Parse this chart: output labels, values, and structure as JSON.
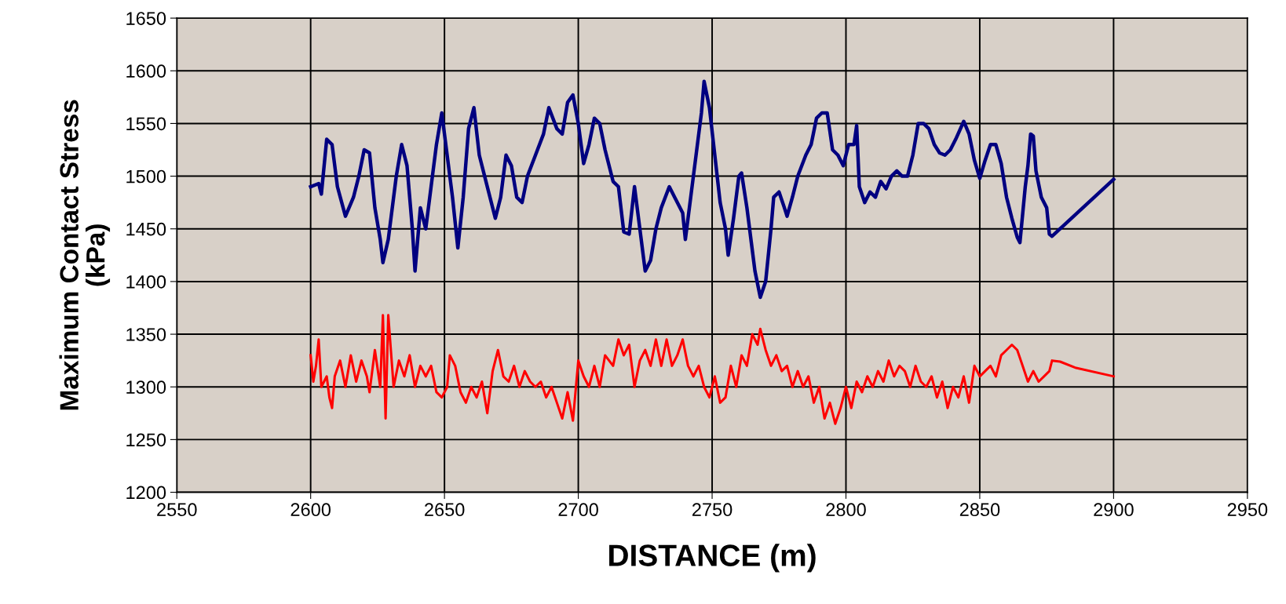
{
  "chart_data": {
    "type": "line",
    "xlabel": "DISTANCE (m)",
    "ylabel": "Maximum Contact Stress\n(kPa)",
    "xlim": [
      2550,
      2950
    ],
    "xticks": [
      2550,
      2600,
      2650,
      2700,
      2750,
      2800,
      2850,
      2900,
      2950
    ],
    "ylim": [
      1200,
      1650
    ],
    "yticks": [
      1200,
      1250,
      1300,
      1350,
      1400,
      1450,
      1500,
      1550,
      1600,
      1650
    ],
    "grid": true,
    "legend": false,
    "marker": "none",
    "line_style": "solid",
    "series": [
      {
        "color": "#000080",
        "x": [
          2600,
          2603,
          2604,
          2606,
          2608,
          2610,
          2613,
          2616,
          2618,
          2620,
          2622,
          2624,
          2626,
          2627,
          2629,
          2632,
          2634,
          2636,
          2638,
          2639,
          2641,
          2643,
          2645,
          2647,
          2649,
          2651,
          2653,
          2655,
          2657,
          2659,
          2661,
          2663,
          2665,
          2667,
          2669,
          2671,
          2673,
          2675,
          2677,
          2679,
          2681,
          2684,
          2687,
          2689,
          2692,
          2694,
          2696,
          2698,
          2700,
          2702,
          2704,
          2706,
          2708,
          2710,
          2713,
          2715,
          2717,
          2719,
          2721,
          2723,
          2725,
          2727,
          2729,
          2731,
          2734,
          2736,
          2739,
          2740,
          2742,
          2744,
          2746,
          2747,
          2749,
          2751,
          2753,
          2755,
          2756,
          2758,
          2760,
          2761,
          2763,
          2765,
          2766,
          2768,
          2770,
          2772,
          2773,
          2775,
          2777,
          2778,
          2780,
          2782,
          2785,
          2787,
          2789,
          2791,
          2793,
          2795,
          2797,
          2799,
          2801,
          2803,
          2804,
          2805,
          2807,
          2809,
          2811,
          2813,
          2815,
          2817,
          2819,
          2821,
          2823,
          2825,
          2827,
          2829,
          2831,
          2833,
          2835,
          2837,
          2839,
          2841,
          2844,
          2846,
          2848,
          2850,
          2852,
          2854,
          2856,
          2858,
          2860,
          2862,
          2864,
          2865,
          2867,
          2868,
          2869,
          2870,
          2871,
          2873,
          2875,
          2876,
          2877,
          2900
        ],
        "values": [
          1490,
          1493,
          1483,
          1535,
          1530,
          1490,
          1462,
          1480,
          1500,
          1525,
          1522,
          1470,
          1440,
          1418,
          1440,
          1500,
          1530,
          1510,
          1450,
          1410,
          1470,
          1450,
          1490,
          1530,
          1560,
          1520,
          1480,
          1432,
          1480,
          1545,
          1565,
          1520,
          1500,
          1480,
          1460,
          1480,
          1520,
          1510,
          1480,
          1475,
          1500,
          1520,
          1540,
          1565,
          1545,
          1540,
          1570,
          1577,
          1550,
          1512,
          1530,
          1555,
          1550,
          1525,
          1495,
          1490,
          1447,
          1445,
          1490,
          1450,
          1410,
          1420,
          1450,
          1470,
          1490,
          1480,
          1465,
          1440,
          1480,
          1520,
          1560,
          1590,
          1565,
          1520,
          1475,
          1450,
          1425,
          1460,
          1500,
          1503,
          1470,
          1430,
          1410,
          1385,
          1400,
          1450,
          1480,
          1485,
          1470,
          1462,
          1480,
          1500,
          1520,
          1530,
          1555,
          1560,
          1560,
          1525,
          1520,
          1510,
          1530,
          1530,
          1548,
          1490,
          1475,
          1485,
          1480,
          1495,
          1488,
          1500,
          1505,
          1500,
          1500,
          1520,
          1550,
          1550,
          1545,
          1530,
          1522,
          1520,
          1525,
          1535,
          1552,
          1540,
          1515,
          1498,
          1515,
          1530,
          1530,
          1512,
          1480,
          1460,
          1442,
          1437,
          1490,
          1510,
          1540,
          1538,
          1505,
          1480,
          1470,
          1445,
          1443,
          1497
        ]
      },
      {
        "color": "#ff0000",
        "x": [
          2600,
          2601,
          2602,
          2603,
          2604,
          2606,
          2607,
          2608,
          2609,
          2611,
          2613,
          2615,
          2617,
          2619,
          2621,
          2622,
          2624,
          2626,
          2627,
          2628,
          2629,
          2631,
          2633,
          2635,
          2637,
          2639,
          2641,
          2643,
          2645,
          2647,
          2649,
          2651,
          2652,
          2654,
          2656,
          2658,
          2660,
          2662,
          2664,
          2666,
          2668,
          2670,
          2672,
          2674,
          2676,
          2678,
          2680,
          2682,
          2684,
          2686,
          2688,
          2690,
          2692,
          2694,
          2696,
          2698,
          2700,
          2702,
          2704,
          2706,
          2708,
          2710,
          2713,
          2715,
          2717,
          2719,
          2721,
          2723,
          2725,
          2727,
          2729,
          2731,
          2733,
          2735,
          2737,
          2739,
          2741,
          2743,
          2745,
          2747,
          2749,
          2751,
          2753,
          2755,
          2757,
          2759,
          2761,
          2763,
          2765,
          2767,
          2768,
          2770,
          2772,
          2774,
          2776,
          2778,
          2780,
          2782,
          2784,
          2786,
          2788,
          2790,
          2792,
          2794,
          2796,
          2798,
          2800,
          2802,
          2804,
          2806,
          2808,
          2810,
          2812,
          2814,
          2816,
          2818,
          2820,
          2822,
          2824,
          2826,
          2828,
          2830,
          2832,
          2834,
          2836,
          2838,
          2840,
          2842,
          2844,
          2846,
          2848,
          2850,
          2852,
          2854,
          2856,
          2858,
          2860,
          2862,
          2864,
          2866,
          2868,
          2870,
          2872,
          2874,
          2876,
          2877,
          2880,
          2886,
          2900
        ],
        "values": [
          1330,
          1305,
          1320,
          1345,
          1300,
          1310,
          1290,
          1280,
          1310,
          1325,
          1300,
          1330,
          1305,
          1325,
          1310,
          1295,
          1335,
          1300,
          1368,
          1270,
          1368,
          1300,
          1325,
          1310,
          1330,
          1300,
          1320,
          1310,
          1320,
          1295,
          1290,
          1300,
          1330,
          1320,
          1295,
          1285,
          1300,
          1290,
          1305,
          1275,
          1315,
          1335,
          1310,
          1305,
          1320,
          1300,
          1315,
          1305,
          1300,
          1305,
          1290,
          1300,
          1285,
          1270,
          1295,
          1268,
          1325,
          1310,
          1300,
          1320,
          1300,
          1330,
          1320,
          1345,
          1330,
          1340,
          1300,
          1325,
          1335,
          1320,
          1345,
          1320,
          1345,
          1320,
          1330,
          1345,
          1320,
          1310,
          1320,
          1300,
          1290,
          1310,
          1285,
          1290,
          1320,
          1300,
          1330,
          1320,
          1350,
          1340,
          1355,
          1335,
          1320,
          1330,
          1315,
          1320,
          1300,
          1315,
          1300,
          1310,
          1285,
          1300,
          1270,
          1285,
          1265,
          1280,
          1300,
          1280,
          1305,
          1295,
          1310,
          1300,
          1315,
          1305,
          1325,
          1310,
          1320,
          1315,
          1300,
          1320,
          1305,
          1300,
          1310,
          1290,
          1305,
          1280,
          1300,
          1290,
          1310,
          1285,
          1320,
          1310,
          1315,
          1320,
          1310,
          1330,
          1335,
          1340,
          1335,
          1320,
          1305,
          1315,
          1305,
          1310,
          1315,
          1325,
          1324,
          1318,
          1310
        ]
      }
    ]
  }
}
